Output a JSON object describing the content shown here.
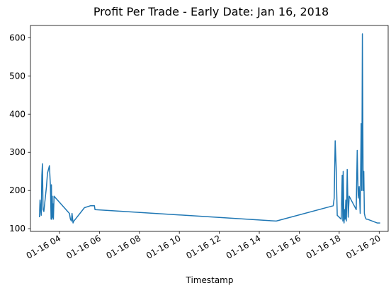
{
  "chart_data": {
    "type": "line",
    "title": "Profit Per Trade - Early Date:  Jan 16, 2018",
    "xlabel": "Timestamp",
    "ylabel": "",
    "x_unit": "hours on 2018-01-16",
    "xlim": [
      2.55,
      20.45
    ],
    "ylim": [
      93,
      632
    ],
    "grid": false,
    "line_color": "#1f77b4",
    "x_ticks": [
      {
        "value": 4,
        "label": "01-16 04"
      },
      {
        "value": 6,
        "label": "01-16 06"
      },
      {
        "value": 8,
        "label": "01-16 08"
      },
      {
        "value": 10,
        "label": "01-16 10"
      },
      {
        "value": 12,
        "label": "01-16 12"
      },
      {
        "value": 14,
        "label": "01-16 14"
      },
      {
        "value": 16,
        "label": "01-16 16"
      },
      {
        "value": 18,
        "label": "01-16 18"
      },
      {
        "value": 20,
        "label": "01-16 20"
      }
    ],
    "y_ticks": [
      {
        "value": 100,
        "label": "100"
      },
      {
        "value": 200,
        "label": "200"
      },
      {
        "value": 300,
        "label": "300"
      },
      {
        "value": 400,
        "label": "400"
      },
      {
        "value": 500,
        "label": "500"
      },
      {
        "value": 600,
        "label": "600"
      }
    ],
    "x": [
      3.0,
      3.03,
      3.06,
      3.09,
      3.12,
      3.15,
      3.18,
      3.22,
      3.28,
      3.35,
      3.4,
      3.5,
      3.55,
      3.58,
      3.6,
      3.62,
      3.64,
      3.66,
      3.68,
      3.7,
      3.73,
      4.5,
      4.55,
      4.6,
      4.63,
      4.68,
      4.72,
      4.8,
      5.25,
      5.55,
      5.75,
      5.78,
      14.85,
      17.7,
      17.75,
      17.8,
      17.85,
      17.9,
      18.1,
      18.15,
      18.18,
      18.2,
      18.24,
      18.27,
      18.3,
      18.33,
      18.36,
      18.4,
      18.45,
      18.5,
      18.85,
      18.9,
      18.95,
      19.0,
      19.05,
      19.1,
      19.13,
      19.16,
      19.2,
      19.23,
      19.26,
      19.3,
      19.35,
      19.4,
      19.9,
      20.05
    ],
    "y": [
      130,
      175,
      150,
      135,
      240,
      270,
      150,
      145,
      175,
      210,
      245,
      265,
      210,
      125,
      215,
      125,
      185,
      130,
      165,
      125,
      185,
      140,
      125,
      120,
      140,
      115,
      120,
      125,
      155,
      160,
      160,
      150,
      120,
      160,
      180,
      330,
      260,
      135,
      125,
      240,
      120,
      250,
      115,
      150,
      125,
      175,
      120,
      255,
      130,
      185,
      150,
      305,
      180,
      210,
      140,
      375,
      200,
      610,
      200,
      250,
      140,
      130,
      125,
      125,
      115,
      115
    ]
  }
}
